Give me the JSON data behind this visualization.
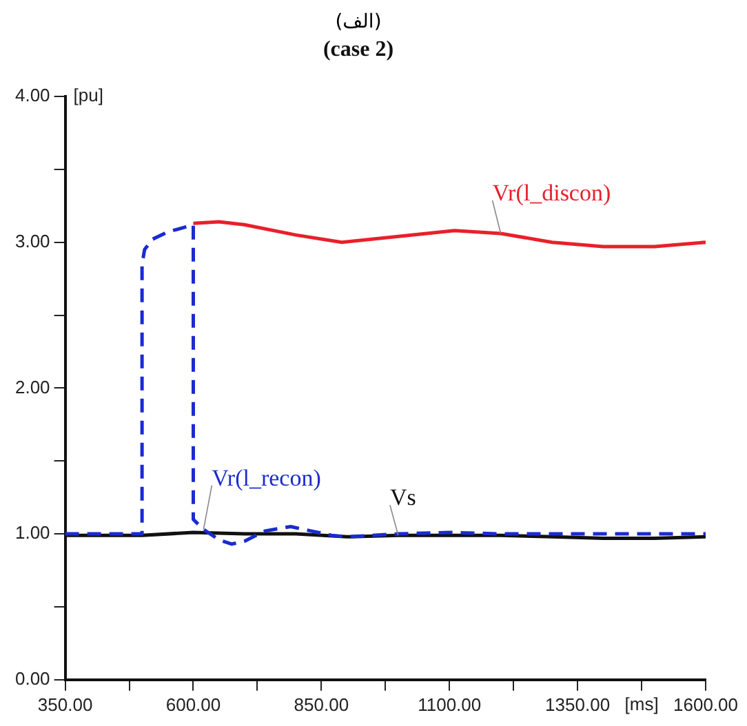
{
  "chart_data": {
    "type": "line",
    "title": "(الف)",
    "subtitle": "(case 2)",
    "xlabel": "[ms]",
    "ylabel": "[pu]",
    "xlim": [
      350,
      1600
    ],
    "xticks": [
      {
        "value": 350,
        "label": "350.00"
      },
      {
        "value": 475,
        "label": null
      },
      {
        "value": 600,
        "label": "600.00"
      },
      {
        "value": 725,
        "label": null
      },
      {
        "value": 850,
        "label": "850.00"
      },
      {
        "value": 975,
        "label": null
      },
      {
        "value": 1100,
        "label": "1100.00"
      },
      {
        "value": 1225,
        "label": null
      },
      {
        "value": 1350,
        "label": "1350.00"
      },
      {
        "value": 1475,
        "label": null
      },
      {
        "value": 1600,
        "label": "1600.00"
      }
    ],
    "ylim": [
      0,
      4
    ],
    "yticks": [
      {
        "value": 0,
        "label": "0.00"
      },
      {
        "value": 0.5,
        "label": null
      },
      {
        "value": 1,
        "label": "1.00"
      },
      {
        "value": 1.5,
        "label": null
      },
      {
        "value": 2,
        "label": "2.00"
      },
      {
        "value": 2.5,
        "label": null
      },
      {
        "value": 3,
        "label": "3.00"
      },
      {
        "value": 3.5,
        "label": null
      },
      {
        "value": 4,
        "label": "4.00"
      }
    ],
    "grid": false,
    "legend": false,
    "marker": "none",
    "series": [
      {
        "name": "Vr(l_discon)",
        "color": "#e8202a",
        "line_style": "solid",
        "x": [
          600,
          650,
          700,
          800,
          890,
          1000,
          1110,
          1200,
          1300,
          1400,
          1500,
          1600
        ],
        "values": [
          3.13,
          3.14,
          3.12,
          3.05,
          3.0,
          3.04,
          3.08,
          3.06,
          3.0,
          2.97,
          2.97,
          3.0
        ]
      },
      {
        "name": "Vr(l_recon)",
        "color": "#1a2bd0",
        "line_style": "dashed",
        "x": [
          350,
          500,
          500,
          505,
          520,
          550,
          580,
          600,
          600,
          620,
          650,
          675,
          700,
          740,
          790,
          830,
          870,
          900,
          1000,
          1100,
          1200,
          1300,
          1400,
          1500,
          1600
        ],
        "values": [
          1.0,
          1.0,
          2.85,
          2.95,
          3.02,
          3.07,
          3.1,
          3.12,
          1.1,
          1.03,
          0.96,
          0.93,
          0.95,
          1.02,
          1.05,
          1.02,
          0.99,
          0.98,
          1.0,
          1.01,
          1.0,
          1.0,
          1.0,
          1.0,
          1.0
        ]
      },
      {
        "name": "Vs",
        "color": "#111111",
        "line_style": "solid",
        "x": [
          350,
          500,
          600,
          700,
          800,
          900,
          1000,
          1100,
          1200,
          1300,
          1400,
          1500,
          1600
        ],
        "values": [
          0.99,
          0.99,
          1.01,
          1.0,
          1.0,
          0.98,
          0.99,
          0.99,
          0.99,
          0.98,
          0.97,
          0.97,
          0.98
        ]
      }
    ]
  }
}
